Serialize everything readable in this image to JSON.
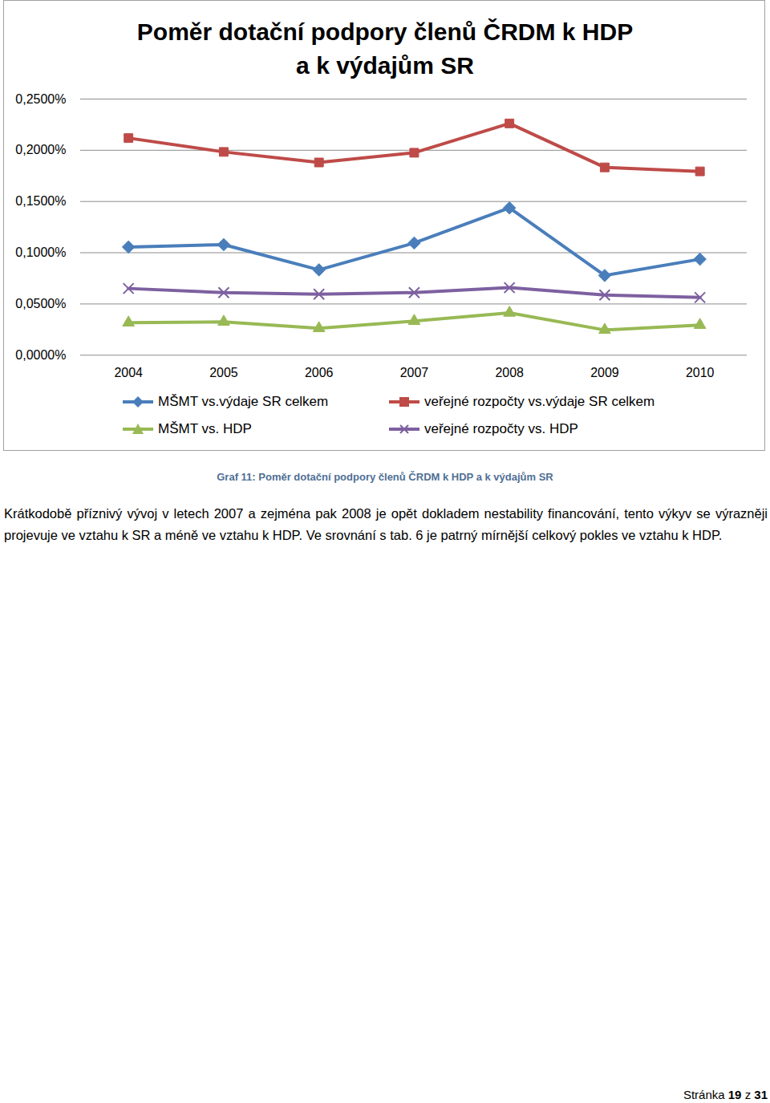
{
  "chart_data": {
    "type": "line",
    "title": "Poměr dotační podpory členů ČRDM k HDP\na k výdajům SR",
    "categories": [
      "2004",
      "2005",
      "2006",
      "2007",
      "2008",
      "2009",
      "2010"
    ],
    "series": [
      {
        "name": "MŠMT vs.výdaje SR celkem",
        "color": "#4a7ebb",
        "marker": "diamond",
        "values": [
          0.1056,
          0.1079,
          0.0833,
          0.1095,
          0.1437,
          0.0778,
          0.0937
        ]
      },
      {
        "name": "veřejné rozpočty vs.výdaje SR celkem",
        "color": "#be4b48",
        "marker": "square",
        "values": [
          0.2119,
          0.1984,
          0.1881,
          0.1976,
          0.2262,
          0.1833,
          0.1794
        ]
      },
      {
        "name": "MŠMT vs. HDP",
        "color": "#98b954",
        "marker": "triangle",
        "values": [
          0.0317,
          0.0325,
          0.0262,
          0.0333,
          0.0413,
          0.0246,
          0.0294
        ]
      },
      {
        "name": "veřejné rozpočty vs. HDP",
        "color": "#7d60a0",
        "marker": "x",
        "values": [
          0.0651,
          0.0611,
          0.0595,
          0.0611,
          0.0659,
          0.0587,
          0.0563
        ]
      }
    ],
    "ylim": [
      0,
      0.25
    ],
    "yticks": [
      {
        "value": 0,
        "label": "0,0000%"
      },
      {
        "value": 0.05,
        "label": "0,0500%"
      },
      {
        "value": 0.1,
        "label": "0,1000%"
      },
      {
        "value": 0.15,
        "label": "0,1500%"
      },
      {
        "value": 0.2,
        "label": "0,2000%"
      },
      {
        "value": 0.25,
        "label": "0,2500%"
      }
    ],
    "grid": true,
    "legend": "bottom"
  },
  "caption": "Graf 11: Poměr dotační podpory členů ČRDM k HDP a k výdajům SR",
  "paragraph": "Krátkodobě příznivý vývoj v letech 2007 a zejména pak 2008 je opět dokladem nestability financování, tento výkyv se výrazněji projevuje ve vztahu k SR a méně ve vztahu k HDP. Ve srovnání s tab. 6 je patrný mírnější celkový pokles ve vztahu k HDP.",
  "footer": {
    "prefix": "Stránka",
    "page": "19",
    "separator": "z",
    "total": "31"
  }
}
